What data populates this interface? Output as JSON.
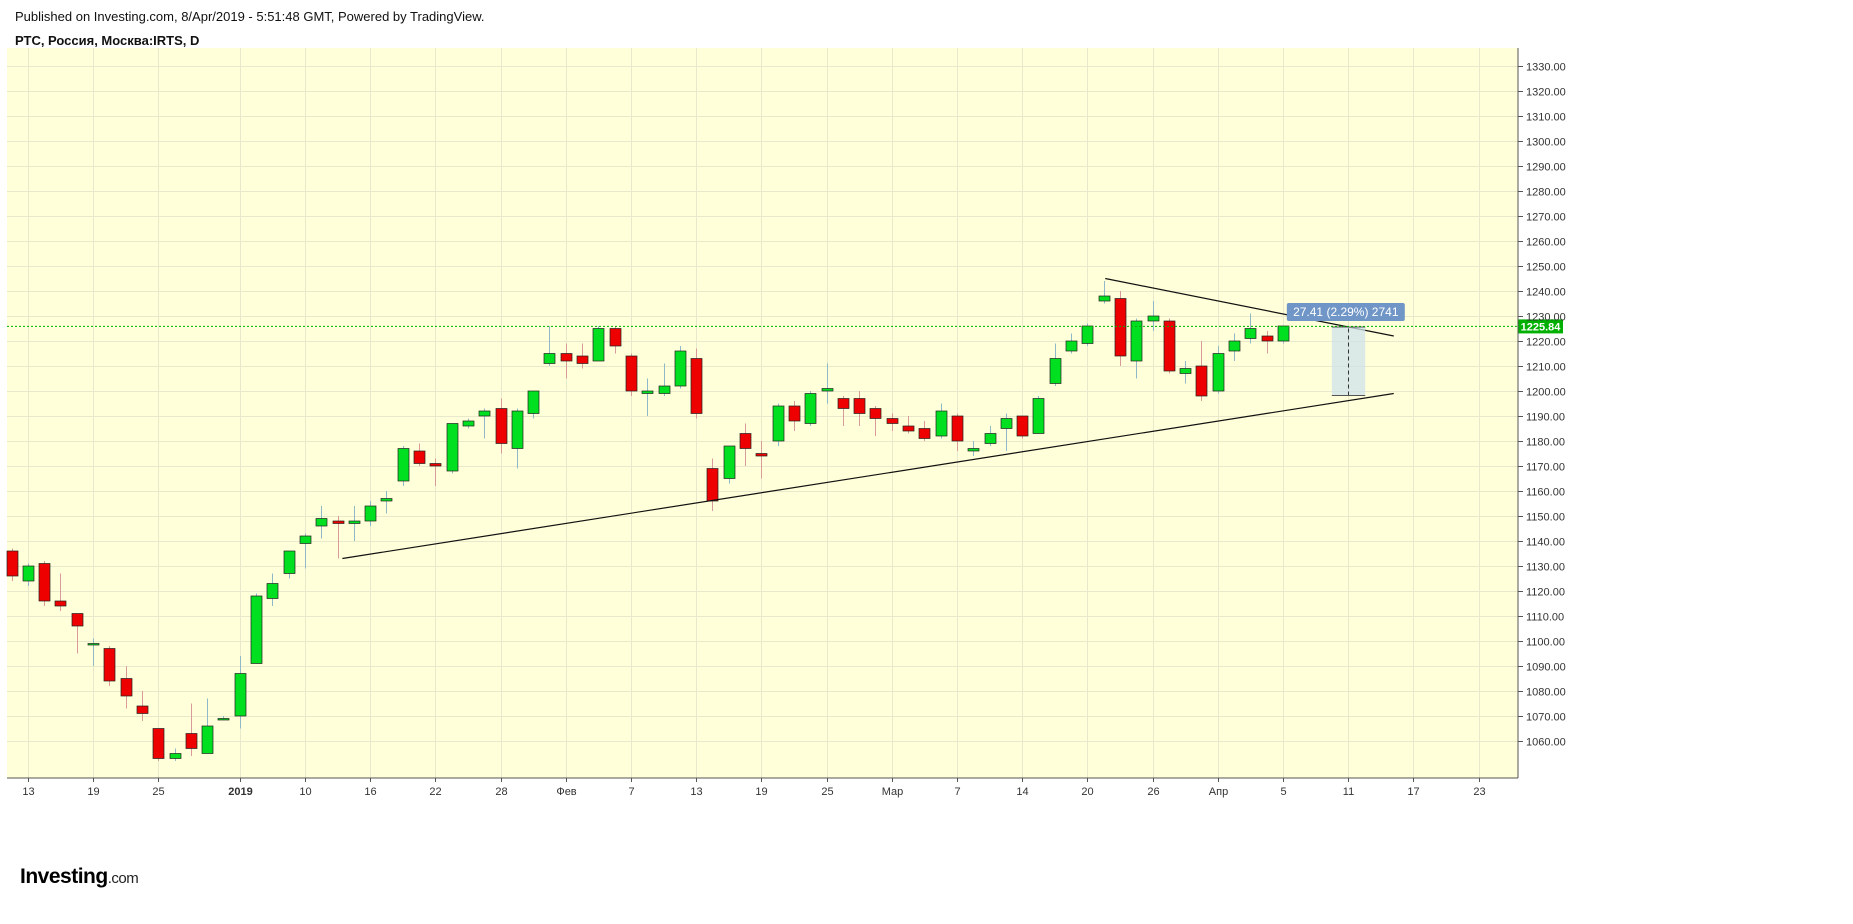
{
  "header": {
    "published": "Published on Investing.com, 8/Apr/2019 - 5:51:48 GMT, Powered by TradingView.",
    "symbol": "РТС, Россия, Москва:IRTS, D"
  },
  "logo": {
    "main": "Investing",
    "suffix": ".com"
  },
  "colors": {
    "background": "#ffffd9",
    "up": "#00e020",
    "down": "#ee0000",
    "grid": "#e8e8cc",
    "last_price": "#00b000",
    "measure": "#6f96c6"
  },
  "chart_data": {
    "type": "candlestick",
    "title": "",
    "xlabel": "",
    "ylabel": "",
    "ylim": [
      1052,
      1336
    ],
    "yticks": [
      1060,
      1070,
      1080,
      1090,
      1100,
      1110,
      1120,
      1130,
      1140,
      1150,
      1160,
      1170,
      1180,
      1190,
      1200,
      1210,
      1220,
      1230,
      1240,
      1250,
      1260,
      1270,
      1280,
      1290,
      1300,
      1310,
      1320,
      1330
    ],
    "xticks": [
      {
        "i": 1,
        "label": "13"
      },
      {
        "i": 5,
        "label": "19"
      },
      {
        "i": 9,
        "label": "25"
      },
      {
        "i": 14,
        "label": "2019"
      },
      {
        "i": 18,
        "label": "10"
      },
      {
        "i": 22,
        "label": "16"
      },
      {
        "i": 26,
        "label": "22"
      },
      {
        "i": 30,
        "label": "28"
      },
      {
        "i": 34,
        "label": "Фев"
      },
      {
        "i": 38,
        "label": "7"
      },
      {
        "i": 42,
        "label": "13"
      },
      {
        "i": 46,
        "label": "19"
      },
      {
        "i": 50,
        "label": "25"
      },
      {
        "i": 54,
        "label": "Мар"
      },
      {
        "i": 58,
        "label": "7"
      },
      {
        "i": 62,
        "label": "14"
      },
      {
        "i": 66,
        "label": "20"
      },
      {
        "i": 70,
        "label": "26"
      },
      {
        "i": 74,
        "label": "Апр"
      },
      {
        "i": 78,
        "label": "5"
      },
      {
        "i": 82,
        "label": "11"
      },
      {
        "i": 86,
        "label": "17"
      },
      {
        "i": 90,
        "label": "23"
      }
    ],
    "last_price": 1225.84,
    "last_price_label": "1225.84",
    "candles": [
      {
        "o": 1136,
        "h": 1137,
        "l": 1124,
        "c": 1126
      },
      {
        "o": 1124,
        "h": 1131,
        "l": 1122,
        "c": 1130
      },
      {
        "o": 1131,
        "h": 1132,
        "l": 1114,
        "c": 1116
      },
      {
        "o": 1116,
        "h": 1127,
        "l": 1112,
        "c": 1114
      },
      {
        "o": 1111,
        "h": 1111,
        "l": 1095,
        "c": 1106
      },
      {
        "o": 1099,
        "h": 1101,
        "l": 1090,
        "c": 1099
      },
      {
        "o": 1097,
        "h": 1098,
        "l": 1082,
        "c": 1084
      },
      {
        "o": 1085,
        "h": 1090,
        "l": 1073,
        "c": 1078
      },
      {
        "o": 1074,
        "h": 1080,
        "l": 1068,
        "c": 1071
      },
      {
        "o": 1065,
        "h": 1065,
        "l": 1052,
        "c": 1053
      },
      {
        "o": 1053,
        "h": 1057,
        "l": 1052,
        "c": 1055
      },
      {
        "o": 1063,
        "h": 1075,
        "l": 1054,
        "c": 1057
      },
      {
        "o": 1055,
        "h": 1077,
        "l": 1055,
        "c": 1066
      },
      {
        "o": 1069,
        "h": 1070,
        "l": 1069,
        "c": 1069
      },
      {
        "o": 1070,
        "h": 1094,
        "l": 1065,
        "c": 1087
      },
      {
        "o": 1091,
        "h": 1119,
        "l": 1091,
        "c": 1118
      },
      {
        "o": 1117,
        "h": 1127,
        "l": 1114,
        "c": 1123
      },
      {
        "o": 1127,
        "h": 1136,
        "l": 1125,
        "c": 1136
      },
      {
        "o": 1139,
        "h": 1143,
        "l": 1129,
        "c": 1142
      },
      {
        "o": 1146,
        "h": 1154,
        "l": 1141,
        "c": 1149
      },
      {
        "o": 1148,
        "h": 1150,
        "l": 1133,
        "c": 1147
      },
      {
        "o": 1147,
        "h": 1154,
        "l": 1140,
        "c": 1148
      },
      {
        "o": 1148,
        "h": 1156,
        "l": 1146,
        "c": 1154
      },
      {
        "o": 1156,
        "h": 1160,
        "l": 1151,
        "c": 1157
      },
      {
        "o": 1164,
        "h": 1178,
        "l": 1162,
        "c": 1177
      },
      {
        "o": 1176,
        "h": 1179,
        "l": 1170,
        "c": 1171
      },
      {
        "o": 1171,
        "h": 1173,
        "l": 1162,
        "c": 1170
      },
      {
        "o": 1168,
        "h": 1186,
        "l": 1167,
        "c": 1187
      },
      {
        "o": 1186,
        "h": 1189,
        "l": 1185,
        "c": 1188
      },
      {
        "o": 1190,
        "h": 1193,
        "l": 1181,
        "c": 1192
      },
      {
        "o": 1193,
        "h": 1197,
        "l": 1175,
        "c": 1179
      },
      {
        "o": 1177,
        "h": 1193,
        "l": 1169,
        "c": 1192
      },
      {
        "o": 1191,
        "h": 1200,
        "l": 1189,
        "c": 1200
      },
      {
        "o": 1211,
        "h": 1226,
        "l": 1210,
        "c": 1215
      },
      {
        "o": 1215,
        "h": 1219,
        "l": 1205,
        "c": 1212
      },
      {
        "o": 1214,
        "h": 1219,
        "l": 1209,
        "c": 1211
      },
      {
        "o": 1212,
        "h": 1226,
        "l": 1212,
        "c": 1225
      },
      {
        "o": 1225,
        "h": 1226,
        "l": 1215,
        "c": 1218
      },
      {
        "o": 1214,
        "h": 1215,
        "l": 1198,
        "c": 1200
      },
      {
        "o": 1199,
        "h": 1205,
        "l": 1190,
        "c": 1200
      },
      {
        "o": 1199,
        "h": 1211,
        "l": 1198,
        "c": 1202
      },
      {
        "o": 1202,
        "h": 1218,
        "l": 1201,
        "c": 1216
      },
      {
        "o": 1213,
        "h": 1217,
        "l": 1189,
        "c": 1191
      },
      {
        "o": 1169,
        "h": 1173,
        "l": 1152,
        "c": 1156
      },
      {
        "o": 1165,
        "h": 1178,
        "l": 1163,
        "c": 1178
      },
      {
        "o": 1183,
        "h": 1187,
        "l": 1170,
        "c": 1177
      },
      {
        "o": 1175,
        "h": 1180,
        "l": 1165,
        "c": 1174
      },
      {
        "o": 1180,
        "h": 1195,
        "l": 1178,
        "c": 1194
      },
      {
        "o": 1194,
        "h": 1196,
        "l": 1184,
        "c": 1188
      },
      {
        "o": 1187,
        "h": 1200,
        "l": 1186,
        "c": 1199
      },
      {
        "o": 1200,
        "h": 1211,
        "l": 1195,
        "c": 1201
      },
      {
        "o": 1197,
        "h": 1198,
        "l": 1186,
        "c": 1193
      },
      {
        "o": 1197,
        "h": 1200,
        "l": 1186,
        "c": 1191
      },
      {
        "o": 1193,
        "h": 1194,
        "l": 1182,
        "c": 1189
      },
      {
        "o": 1189,
        "h": 1191,
        "l": 1184,
        "c": 1187
      },
      {
        "o": 1186,
        "h": 1190,
        "l": 1183,
        "c": 1184
      },
      {
        "o": 1185,
        "h": 1188,
        "l": 1180,
        "c": 1181
      },
      {
        "o": 1182,
        "h": 1195,
        "l": 1181,
        "c": 1192
      },
      {
        "o": 1190,
        "h": 1191,
        "l": 1176,
        "c": 1180
      },
      {
        "o": 1176,
        "h": 1180,
        "l": 1174,
        "c": 1177
      },
      {
        "o": 1179,
        "h": 1186,
        "l": 1178,
        "c": 1183
      },
      {
        "o": 1185,
        "h": 1191,
        "l": 1176,
        "c": 1189
      },
      {
        "o": 1190,
        "h": 1190,
        "l": 1181,
        "c": 1182
      },
      {
        "o": 1183,
        "h": 1198,
        "l": 1183,
        "c": 1197
      },
      {
        "o": 1203,
        "h": 1219,
        "l": 1202,
        "c": 1213
      },
      {
        "o": 1216,
        "h": 1223,
        "l": 1215,
        "c": 1220
      },
      {
        "o": 1219,
        "h": 1227,
        "l": 1218,
        "c": 1226
      },
      {
        "o": 1236,
        "h": 1244,
        "l": 1235,
        "c": 1238
      },
      {
        "o": 1237,
        "h": 1240,
        "l": 1210,
        "c": 1214
      },
      {
        "o": 1212,
        "h": 1229,
        "l": 1205,
        "c": 1228
      },
      {
        "o": 1228,
        "h": 1236,
        "l": 1224,
        "c": 1230
      },
      {
        "o": 1228,
        "h": 1229,
        "l": 1207,
        "c": 1208
      },
      {
        "o": 1207,
        "h": 1212,
        "l": 1203,
        "c": 1209
      },
      {
        "o": 1210,
        "h": 1220,
        "l": 1196,
        "c": 1198
      },
      {
        "o": 1200,
        "h": 1218,
        "l": 1199,
        "c": 1215
      },
      {
        "o": 1216,
        "h": 1223,
        "l": 1212,
        "c": 1220
      },
      {
        "o": 1221,
        "h": 1231,
        "l": 1219,
        "c": 1225
      },
      {
        "o": 1222,
        "h": 1224,
        "l": 1215,
        "c": 1220
      },
      {
        "o": 1220,
        "h": 1226,
        "l": 1219,
        "c": 1226
      }
    ],
    "trendlines": [
      {
        "from": {
          "i": 20.3,
          "v": 1133
        },
        "to": {
          "i": 84.8,
          "v": 1199
        }
      },
      {
        "from": {
          "i": 67.1,
          "v": 1245
        },
        "to": {
          "i": 84.8,
          "v": 1222
        }
      }
    ],
    "measure": {
      "from": {
        "i": 81.0,
        "v": 1198.2
      },
      "to": {
        "i": 83.05,
        "v": 1225.6
      },
      "label": "27.41 (2.29%) 2741"
    }
  }
}
